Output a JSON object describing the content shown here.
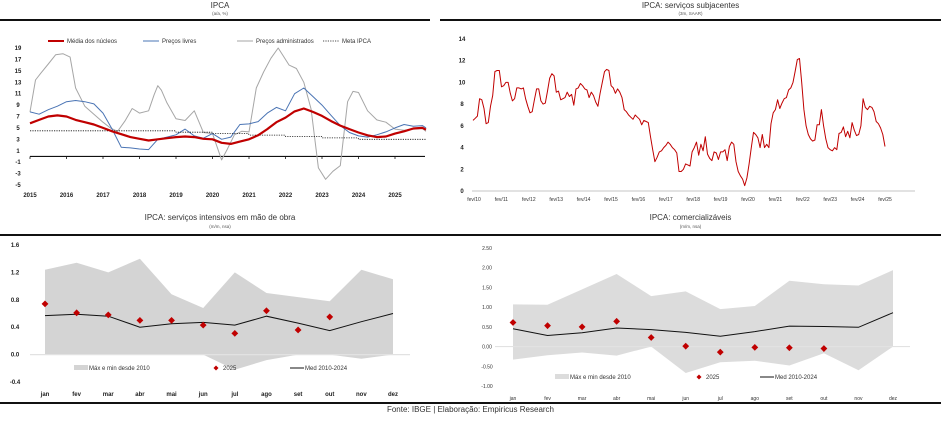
{
  "footer": "Fonte: IBGE | Elaboração: Empiricus Research",
  "colors": {
    "red": "#c00000",
    "blue": "#4a74b4",
    "gray": "#a6a6a6",
    "band": "#d9d9d9",
    "black": "#111111"
  },
  "chart_data": [
    {
      "id": "ipca",
      "type": "line",
      "title": "IPCA",
      "subtitle": "(a/a, %)",
      "xlabel": "",
      "ylabel": "",
      "ylim": [
        -5,
        19
      ],
      "yticks": [
        "19",
        "17",
        "15",
        "13",
        "11",
        "9",
        "7",
        "5",
        "3",
        "1",
        "-1",
        "-3",
        "-5"
      ],
      "xticks": [
        "2015",
        "2016",
        "2017",
        "2018",
        "2019",
        "2020",
        "2021",
        "2022",
        "2023",
        "2024",
        "2025"
      ],
      "x_start": 2015.0,
      "x_end": 2025.85,
      "legend_position": "top",
      "series": [
        {
          "name": "Média dos núcleos",
          "color_key": "red",
          "width": 2.2,
          "dash": "",
          "x": [
            2015.0,
            2015.25,
            2015.5,
            2015.75,
            2016.0,
            2016.25,
            2016.5,
            2016.75,
            2017.0,
            2017.25,
            2017.5,
            2017.75,
            2018.0,
            2018.25,
            2018.5,
            2018.75,
            2019.0,
            2019.25,
            2019.5,
            2019.75,
            2020.0,
            2020.25,
            2020.5,
            2020.75,
            2021.0,
            2021.25,
            2021.5,
            2021.75,
            2022.0,
            2022.25,
            2022.5,
            2022.75,
            2023.0,
            2023.25,
            2023.5,
            2023.75,
            2024.0,
            2024.25,
            2024.5,
            2024.75,
            2025.0,
            2025.25,
            2025.5,
            2025.75,
            2025.85
          ],
          "values": [
            5.8,
            6.4,
            7.0,
            7.2,
            7.0,
            6.4,
            6.0,
            5.6,
            5.0,
            4.4,
            3.9,
            3.4,
            3.1,
            2.8,
            3.0,
            3.2,
            3.4,
            3.5,
            3.4,
            3.1,
            3.0,
            2.4,
            2.2,
            2.6,
            3.0,
            3.7,
            4.8,
            6.0,
            6.8,
            7.9,
            8.4,
            7.8,
            7.1,
            6.2,
            5.4,
            4.8,
            4.2,
            3.7,
            3.4,
            3.5,
            4.0,
            4.4,
            4.9,
            5.0,
            4.7
          ]
        },
        {
          "name": "Preços livres",
          "color_key": "blue",
          "width": 1,
          "dash": "",
          "x": [
            2015.0,
            2015.25,
            2015.5,
            2015.75,
            2016.0,
            2016.25,
            2016.5,
            2016.75,
            2017.0,
            2017.25,
            2017.5,
            2017.75,
            2018.0,
            2018.25,
            2018.5,
            2018.75,
            2019.0,
            2019.25,
            2019.5,
            2019.75,
            2020.0,
            2020.25,
            2020.5,
            2020.75,
            2021.0,
            2021.25,
            2021.5,
            2021.75,
            2022.0,
            2022.25,
            2022.5,
            2022.75,
            2023.0,
            2023.25,
            2023.5,
            2023.75,
            2024.0,
            2024.25,
            2024.5,
            2024.75,
            2025.0,
            2025.25,
            2025.5,
            2025.75,
            2025.85
          ],
          "values": [
            7.8,
            7.4,
            8.2,
            8.8,
            9.6,
            9.8,
            9.6,
            9.2,
            7.6,
            4.8,
            1.6,
            1.5,
            1.3,
            1.2,
            3.0,
            3.4,
            3.8,
            4.8,
            3.6,
            3.2,
            4.0,
            3.0,
            3.4,
            5.6,
            5.7,
            6.1,
            7.6,
            8.6,
            8.0,
            11.0,
            12.0,
            10.5,
            9.0,
            7.2,
            5.4,
            4.2,
            3.6,
            3.4,
            3.8,
            4.3,
            5.0,
            5.6,
            5.3,
            5.4,
            5.0
          ]
        },
        {
          "name": "Preços administrados",
          "color_key": "gray",
          "width": 1,
          "dash": "",
          "x": [
            2015.0,
            2015.15,
            2015.3,
            2015.5,
            2015.7,
            2015.9,
            2016.1,
            2016.25,
            2016.5,
            2016.75,
            2017.0,
            2017.2,
            2017.4,
            2017.6,
            2017.8,
            2018.0,
            2018.25,
            2018.4,
            2018.5,
            2018.6,
            2018.75,
            2019.0,
            2019.25,
            2019.5,
            2019.75,
            2020.0,
            2020.25,
            2020.4,
            2020.6,
            2020.8,
            2021.0,
            2021.2,
            2021.4,
            2021.6,
            2021.8,
            2021.95,
            2022.1,
            2022.3,
            2022.5,
            2022.7,
            2022.9,
            2023.1,
            2023.3,
            2023.5,
            2023.7,
            2023.85,
            2024.0,
            2024.25,
            2024.5,
            2024.75,
            2025.0,
            2025.25,
            2025.5,
            2025.75,
            2025.85
          ],
          "values": [
            7.8,
            13.4,
            14.6,
            16.2,
            17.8,
            18.0,
            17.4,
            12.0,
            8.8,
            7.4,
            6.0,
            5.0,
            4.4,
            6.2,
            8.4,
            7.6,
            8.0,
            10.8,
            12.4,
            11.6,
            9.4,
            6.6,
            6.3,
            8.0,
            4.2,
            4.0,
            -0.6,
            1.2,
            3.8,
            4.4,
            4.3,
            12.0,
            14.8,
            17.2,
            19.0,
            17.5,
            16.0,
            15.4,
            13.0,
            8.3,
            -2.0,
            -4.0,
            -2.6,
            -1.6,
            9.6,
            11.4,
            11.2,
            8.0,
            6.4,
            6.0,
            4.8,
            4.6,
            4.8,
            4.9,
            4.4
          ]
        },
        {
          "name": "Meta IPCA",
          "color_key": "black",
          "width": 0.8,
          "dash": "1.2,1.2",
          "x": [
            2015.0,
            2016.0,
            2016.99,
            2017.0,
            2017.99,
            2018.0,
            2018.99,
            2019.0,
            2019.99,
            2020.0,
            2020.99,
            2021.0,
            2021.99,
            2022.0,
            2022.99,
            2023.0,
            2023.99,
            2024.0,
            2025.85
          ],
          "values": [
            4.5,
            4.5,
            4.5,
            4.5,
            4.5,
            4.5,
            4.5,
            4.25,
            4.25,
            4.0,
            4.0,
            3.75,
            3.75,
            3.5,
            3.5,
            3.25,
            3.25,
            3.0,
            3.0
          ]
        }
      ]
    },
    {
      "id": "servicos-subjacentes",
      "type": "line",
      "title": "IPCA: serviços subjacentes",
      "subtitle": "(3m, SAAR)",
      "ylim": [
        0,
        14
      ],
      "yticks": [
        "14",
        "12",
        "10",
        "8",
        "6",
        "4",
        "2",
        "0"
      ],
      "xticks": [
        "fev/10",
        "fev/11",
        "fev/12",
        "fev/13",
        "fev/14",
        "fev/15",
        "fev/16",
        "fev/17",
        "fev/18",
        "fev/19",
        "fev/20",
        "fev/21",
        "fev/22",
        "fev/23",
        "fev/24",
        "fev/25"
      ],
      "series": [
        {
          "name": "Serviços subjacentes",
          "color_key": "red",
          "values": [
            6.5,
            6.7,
            6.9,
            8.5,
            8.4,
            7.6,
            6.2,
            6.3,
            7.8,
            8.8,
            11.0,
            11.1,
            11.1,
            9.6,
            9.7,
            10.0,
            10.0,
            9.0,
            8.3,
            8.5,
            9.5,
            9.5,
            9.4,
            9.5,
            8.5,
            7.8,
            7.2,
            7.3,
            8.4,
            9.4,
            9.4,
            8.3,
            8.0,
            8.1,
            9.2,
            10.4,
            10.8,
            10.6,
            9.1,
            9.2,
            8.4,
            8.5,
            8.6,
            9.1,
            8.7,
            8.9,
            7.9,
            9.4,
            9.5,
            9.9,
            9.7,
            9.4,
            9.3,
            8.6,
            9.1,
            8.8,
            8.2,
            7.8,
            9.0,
            10.0,
            11.0,
            11.2,
            11.1,
            9.7,
            9.5,
            9.0,
            9.4,
            9.1,
            8.6,
            7.5,
            7.3,
            7.0,
            6.8,
            6.6,
            7.0,
            6.8,
            6.6,
            6.1,
            6.5,
            6.4,
            6.3,
            5.0,
            3.8,
            2.7,
            3.1,
            3.6,
            3.7,
            4.0,
            4.2,
            4.5,
            4.3,
            4.0,
            3.8,
            3.5,
            1.8,
            1.8,
            2.0,
            2.5,
            2.4,
            2.3,
            3.6,
            4.0,
            4.5,
            3.3,
            4.3,
            3.7,
            5.0,
            3.4,
            3.0,
            2.8,
            3.6,
            3.5,
            2.9,
            3.6,
            3.6,
            3.8,
            2.8,
            4.1,
            4.5,
            4.3,
            2.7,
            1.8,
            1.4,
            1.1,
            0.5,
            1.2,
            2.5,
            4.0,
            5.4,
            5.2,
            4.9,
            4.0,
            5.2,
            4.0,
            4.3,
            4.0,
            6.2,
            7.2,
            7.5,
            8.4,
            7.6,
            8.1,
            8.5,
            8.6,
            9.3,
            9.5,
            10.0,
            11.0,
            12.1,
            12.2,
            10.0,
            7.5,
            6.0,
            5.2,
            4.8,
            4.6,
            4.7,
            6.1,
            6.1,
            7.5,
            6.0,
            4.8,
            4.0,
            3.8,
            3.7,
            4.0,
            3.8,
            5.3,
            5.4,
            5.9,
            5.0,
            5.5,
            4.9,
            6.3,
            5.6,
            5.1,
            5.2,
            6.0,
            8.5,
            7.7,
            7.5,
            7.8,
            7.7,
            7.3,
            6.4,
            6.2,
            5.8,
            5.2,
            4.1
          ]
        }
      ]
    },
    {
      "id": "servicos-intensivos",
      "type": "line",
      "title": "IPCA: serviços intensivos em mão de obra",
      "subtitle": "(m/m, nsa)",
      "ylim": [
        -0.4,
        1.6
      ],
      "yticks": [
        "1.6",
        "1.2",
        "0.8",
        "0.4",
        "0.0",
        "-0.4"
      ],
      "categories": [
        "jan",
        "fev",
        "mar",
        "abr",
        "mai",
        "jun",
        "jul",
        "ago",
        "set",
        "out",
        "nov",
        "dez"
      ],
      "band": {
        "name": "Máx e min desde 2010",
        "max": [
          1.24,
          1.34,
          1.2,
          1.4,
          0.88,
          0.68,
          1.2,
          0.9,
          0.84,
          0.78,
          1.24,
          1.1
        ],
        "min": [
          0.0,
          0.0,
          0.0,
          0.0,
          0.0,
          0.0,
          -0.22,
          -0.08,
          0.0,
          0.0,
          -0.06,
          0.0
        ]
      },
      "points": {
        "name": "2025",
        "values": [
          0.74,
          0.61,
          0.58,
          0.5,
          0.5,
          0.43,
          0.31,
          0.64,
          0.36,
          0.55,
          null,
          null
        ]
      },
      "line": {
        "name": "Med 2010-2024",
        "values": [
          0.57,
          0.59,
          0.56,
          0.4,
          0.45,
          0.47,
          0.43,
          0.56,
          0.46,
          0.35,
          0.48,
          0.6
        ]
      },
      "legend_position": "bottom"
    },
    {
      "id": "comercializaveis",
      "type": "line",
      "title": "IPCA: comercializáveis",
      "subtitle": "(m/m, nsa)",
      "ylim": [
        -1.0,
        2.5
      ],
      "yticks": [
        "2.50",
        "2.00",
        "1.50",
        "1.00",
        "0.50",
        "0.00",
        "-0.50",
        "-1.00"
      ],
      "categories": [
        "jan",
        "fev",
        "mar",
        "abr",
        "mai",
        "jun",
        "jul",
        "ago",
        "set",
        "out",
        "nov",
        "dez"
      ],
      "band": {
        "name": "Máx e min desde 2010",
        "max": [
          1.07,
          1.06,
          1.45,
          1.84,
          1.28,
          1.4,
          0.95,
          1.03,
          1.67,
          1.58,
          1.55,
          1.94
        ],
        "min": [
          -0.33,
          -0.22,
          -0.15,
          -0.23,
          0.0,
          -0.67,
          -0.4,
          -0.36,
          -0.48,
          -0.17,
          -0.6,
          0.0
        ]
      },
      "points": {
        "name": "2025",
        "values": [
          0.61,
          0.53,
          0.5,
          0.64,
          0.23,
          0.01,
          -0.14,
          -0.02,
          -0.03,
          -0.05,
          null,
          null
        ]
      },
      "line": {
        "name": "Med 2010-2024",
        "values": [
          0.45,
          0.28,
          0.35,
          0.47,
          0.43,
          0.36,
          0.26,
          0.38,
          0.52,
          0.51,
          0.49,
          0.86
        ]
      },
      "legend_position": "bottom"
    }
  ]
}
